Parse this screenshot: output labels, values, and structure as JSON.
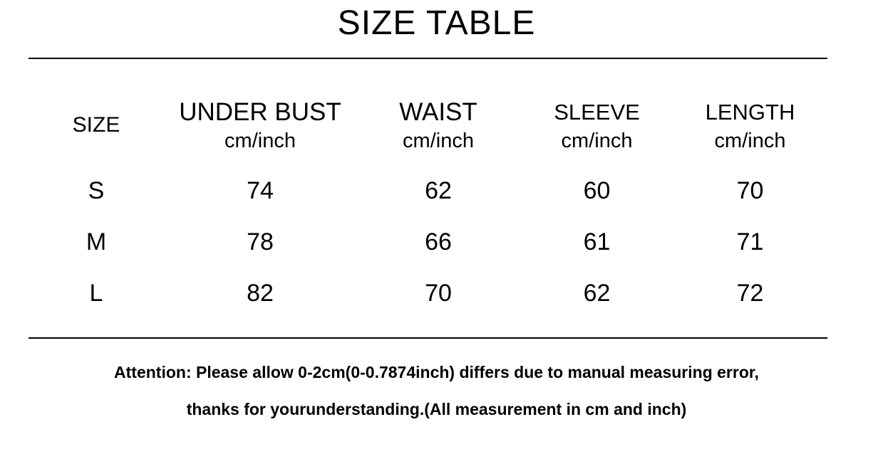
{
  "chart_data": {
    "type": "table",
    "title": "SIZE TABLE",
    "columns": [
      {
        "label": "SIZE",
        "unit": ""
      },
      {
        "label": "UNDER BUST",
        "unit": "cm/inch"
      },
      {
        "label": "WAIST",
        "unit": "cm/inch"
      },
      {
        "label": "SLEEVE",
        "unit": "cm/inch"
      },
      {
        "label": "LENGTH",
        "unit": "cm/inch"
      }
    ],
    "rows": [
      [
        "S",
        "74",
        "62",
        "60",
        "70"
      ],
      [
        "M",
        "78",
        "66",
        "61",
        "71"
      ],
      [
        "L",
        "82",
        "70",
        "62",
        "72"
      ]
    ],
    "notes": [
      "Attention: Please allow 0-2cm(0-0.7874inch) differs due to manual measuring error,",
      "thanks for yourunderstanding.(All measurement in cm and inch)"
    ]
  }
}
